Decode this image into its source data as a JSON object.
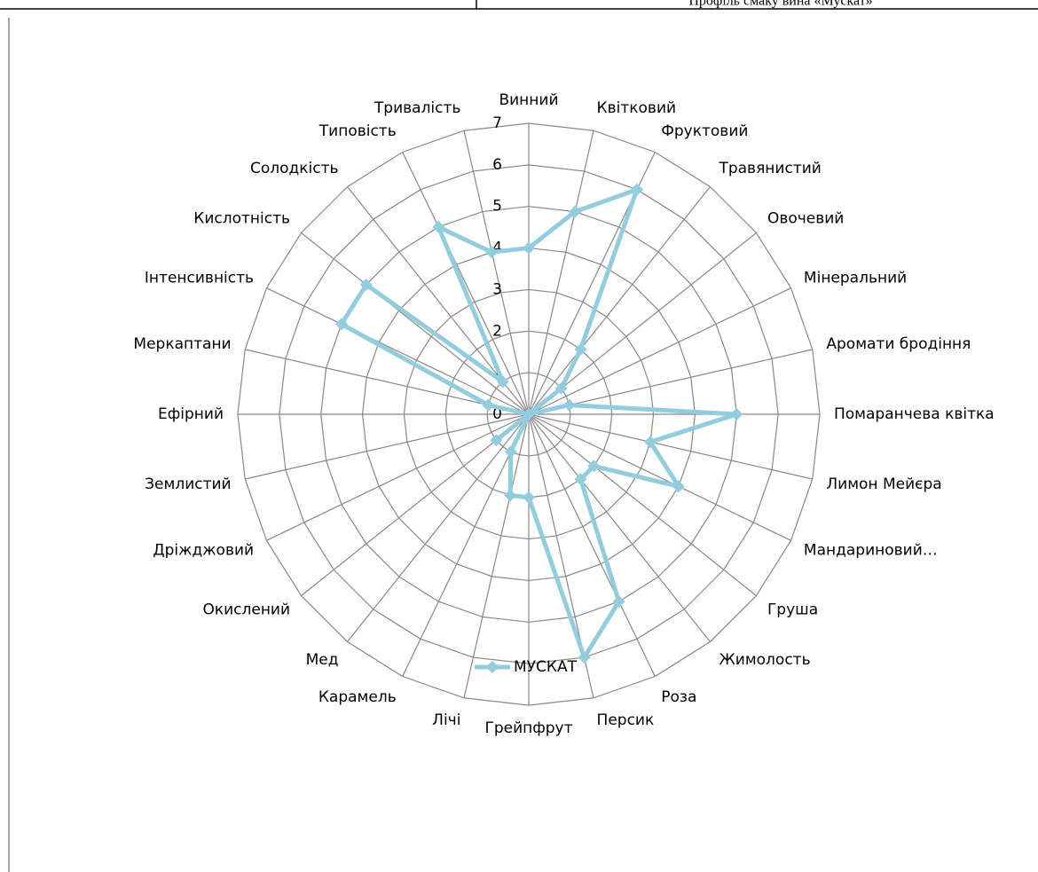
{
  "header": {
    "title": "Профіль смаку вина «Мускат»"
  },
  "chart_data": {
    "type": "radar",
    "categories": [
      "Винний",
      "Квітковий",
      "Фруктовий",
      "Травянистий",
      "Овочевий",
      "Мінеральний",
      "Аромати бродіння",
      "Помаранчева квітка",
      "Лимон Мейєра",
      "Мандариновий…",
      "Груша",
      "Жимолость",
      "Роза",
      "Персик",
      "Грейпфрут",
      "Лічі",
      "Карамель",
      "Мед",
      "Окислений",
      "Дріжджовий",
      "Землистий",
      "Ефірний",
      "Меркаптани",
      "Інтенсивність",
      "Кислотність",
      "Солодкість",
      "Типовість",
      "Тривалість"
    ],
    "series": [
      {
        "name": "МУСКАТ",
        "color": "#93cddd",
        "values": [
          4,
          5,
          6,
          2,
          1,
          0,
          1,
          5,
          3,
          4,
          2,
          2,
          5,
          6,
          2,
          2,
          1,
          0,
          1,
          0,
          0,
          0,
          1,
          5,
          5,
          1,
          5,
          4
        ]
      }
    ],
    "ylim": [
      0,
      7
    ],
    "yticks": [
      0,
      1,
      2,
      3,
      4,
      5,
      6,
      7
    ],
    "grid": true,
    "legend": "bottom"
  }
}
